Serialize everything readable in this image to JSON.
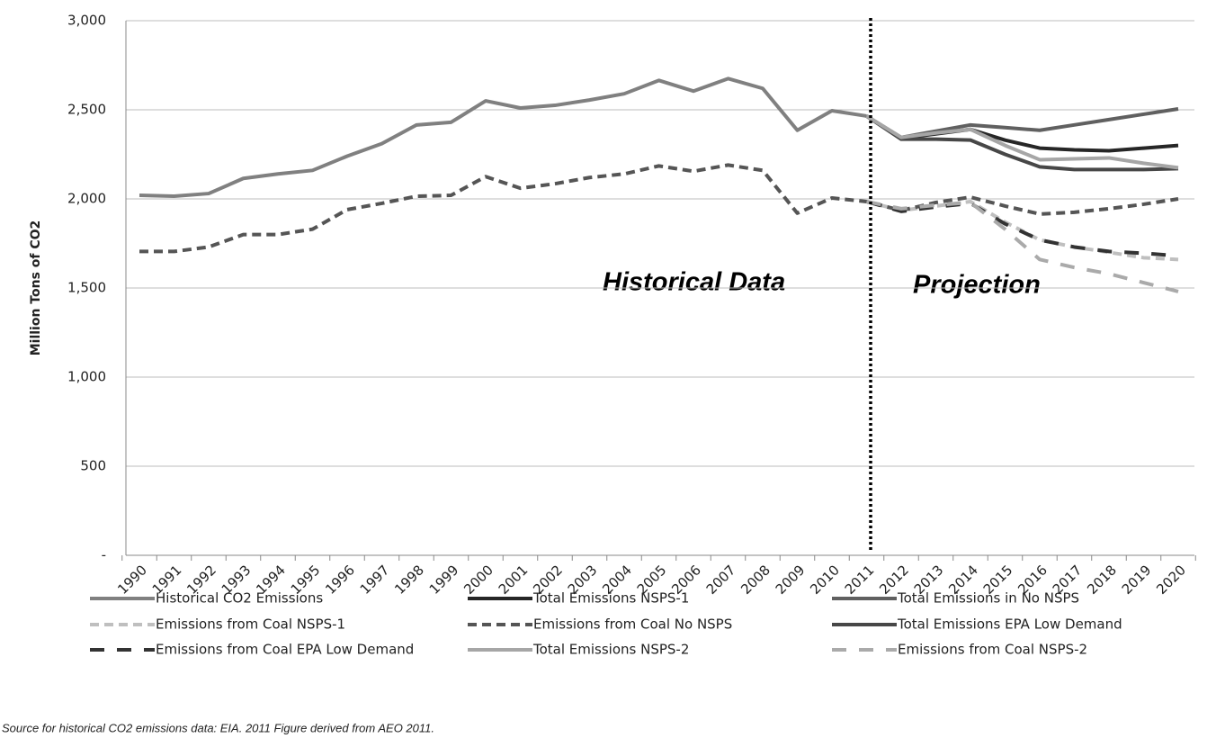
{
  "chart_data": {
    "type": "line",
    "y_label": "Million Tons of CO2",
    "annotations": [
      "Historical Data",
      "Projection"
    ],
    "source": "Source for historical CO2 emissions data: EIA.  2011 Figure derived from AEO 2011.",
    "categories": [
      "1990",
      "1991",
      "1992",
      "1993",
      "1994",
      "1995",
      "1996",
      "1997",
      "1998",
      "1999",
      "2000",
      "2001",
      "2002",
      "2003",
      "2004",
      "2005",
      "2006",
      "2007",
      "2008",
      "2009",
      "2010",
      "2011",
      "2012",
      "2013",
      "2014",
      "2015",
      "2016",
      "2017",
      "2018",
      "2019",
      "2020"
    ],
    "ylim": [
      0,
      3000
    ],
    "yticks": [
      {
        "value": 0,
        "label": "-"
      },
      500,
      {
        "value": 1000,
        "label": "1,000"
      },
      {
        "value": 1500,
        "label": "1,500"
      },
      {
        "value": 2000,
        "label": "2,000"
      },
      {
        "value": 2500,
        "label": "2,500"
      },
      {
        "value": 3000,
        "label": "3,000"
      }
    ],
    "grid": true,
    "legend": "bottom",
    "series": [
      {
        "name": "Historical CO2 Emissions",
        "color": "#808080",
        "line_style": "solid",
        "values": [
          2020,
          2015,
          2030,
          2115,
          2140,
          2160,
          2240,
          2310,
          2415,
          2430,
          2550,
          2510,
          2525,
          2555,
          2590,
          2665,
          2605,
          2675,
          2620,
          2385,
          2495,
          2465,
          null,
          null,
          null,
          null,
          null,
          null,
          null,
          null,
          null
        ]
      },
      {
        "name": "Total Emissions NSPS-1",
        "color": "#262626",
        "line_style": "solid",
        "values": [
          null,
          null,
          null,
          null,
          null,
          null,
          null,
          null,
          null,
          null,
          null,
          null,
          null,
          null,
          null,
          null,
          null,
          null,
          null,
          null,
          null,
          2465,
          2340,
          2365,
          2390,
          2330,
          2285,
          2275,
          2270,
          2285,
          2300
        ]
      },
      {
        "name": "Total Emissions in No NSPS",
        "color": "#606060",
        "line_style": "solid",
        "values": [
          null,
          null,
          null,
          null,
          null,
          null,
          null,
          null,
          null,
          null,
          null,
          null,
          null,
          null,
          null,
          null,
          null,
          null,
          null,
          null,
          null,
          2465,
          2345,
          2380,
          2415,
          2400,
          2385,
          2415,
          2445,
          2475,
          2505
        ]
      },
      {
        "name": "Emissions from Coal NSPS-1",
        "color": "#bfbfbf",
        "line_style": "dashed",
        "values": [
          null,
          null,
          null,
          null,
          null,
          null,
          null,
          null,
          null,
          null,
          null,
          null,
          null,
          null,
          null,
          null,
          null,
          null,
          null,
          null,
          null,
          1985,
          1935,
          1960,
          1985,
          1870,
          1770,
          1730,
          1700,
          1670,
          1660
        ]
      },
      {
        "name": "Emissions from Coal No NSPS",
        "color": "#555555",
        "line_style": "dashed",
        "values": [
          1705,
          1705,
          1730,
          1800,
          1800,
          1830,
          1940,
          1975,
          2015,
          2020,
          2125,
          2060,
          2085,
          2120,
          2140,
          2185,
          2155,
          2190,
          2160,
          1920,
          2005,
          1985,
          1935,
          1980,
          2010,
          1960,
          1915,
          1925,
          1945,
          1970,
          2000
        ]
      },
      {
        "name": "Total Emissions EPA Low Demand",
        "color": "#474747",
        "line_style": "solid",
        "values": [
          null,
          null,
          null,
          null,
          null,
          null,
          null,
          null,
          null,
          null,
          null,
          null,
          null,
          null,
          null,
          null,
          null,
          null,
          null,
          null,
          null,
          2465,
          2335,
          2335,
          2330,
          2250,
          2180,
          2165,
          2165,
          2165,
          2170
        ]
      },
      {
        "name": "Emissions from Coal EPA Low Demand",
        "color": "#333333",
        "line_style": "long-dash",
        "values": [
          null,
          null,
          null,
          null,
          null,
          null,
          null,
          null,
          null,
          null,
          null,
          null,
          null,
          null,
          null,
          null,
          null,
          null,
          null,
          null,
          null,
          1985,
          1930,
          1955,
          1975,
          1860,
          1770,
          1730,
          1705,
          1695,
          1680
        ]
      },
      {
        "name": "Total Emissions NSPS-2",
        "color": "#a6a6a6",
        "line_style": "solid",
        "values": [
          null,
          null,
          null,
          null,
          null,
          null,
          null,
          null,
          null,
          null,
          null,
          null,
          null,
          null,
          null,
          null,
          null,
          null,
          null,
          null,
          null,
          2465,
          2345,
          2370,
          2390,
          2300,
          2220,
          2225,
          2230,
          2200,
          2175
        ]
      },
      {
        "name": "Emissions from Coal NSPS-2",
        "color": "#aaaaaa",
        "line_style": "long-dash",
        "values": [
          null,
          null,
          null,
          null,
          null,
          null,
          null,
          null,
          null,
          null,
          null,
          null,
          null,
          null,
          null,
          null,
          null,
          null,
          null,
          null,
          null,
          1985,
          1945,
          1965,
          1980,
          1830,
          1660,
          1615,
          1580,
          1530,
          1480
        ]
      }
    ]
  }
}
